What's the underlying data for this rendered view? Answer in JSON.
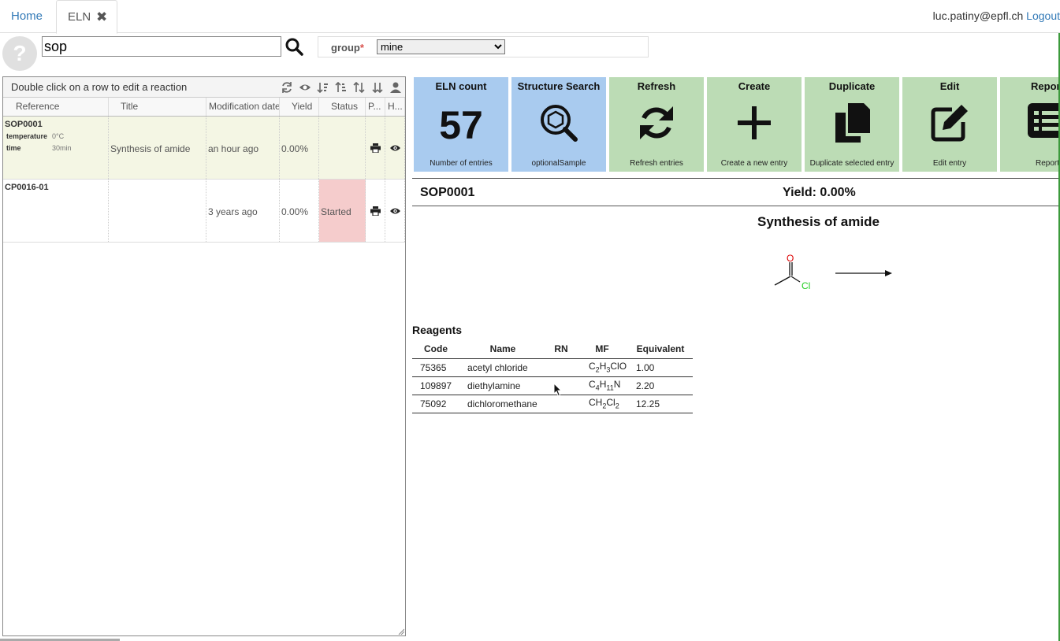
{
  "tabs": {
    "home": "Home",
    "eln": "ELN"
  },
  "user": {
    "email": "luc.patiny@epfl.ch",
    "logout": "Logout"
  },
  "search": {
    "value": "sop"
  },
  "group": {
    "label": "group",
    "required_mark": "*",
    "selected": "mine"
  },
  "list": {
    "hint": "Double click on a row to edit a reaction",
    "columns": [
      "Reference",
      "Title",
      "Modification date",
      "Yield",
      "Status",
      "P...",
      "H..."
    ],
    "rows": [
      {
        "reference": "SOP0001",
        "conditions": [
          {
            "key": "temperature",
            "value": "0°C"
          },
          {
            "key": "time",
            "value": "30min"
          }
        ],
        "title": "Synthesis of amide",
        "modified": "an hour ago",
        "yield": "0.00%",
        "status": ""
      },
      {
        "reference": "CP0016-01",
        "conditions": [],
        "title": "",
        "modified": "3 years ago",
        "yield": "0.00%",
        "status": "Started"
      }
    ]
  },
  "tiles": [
    {
      "title": "ELN count",
      "value": "57",
      "subtitle": "Number of entries",
      "color": "#a9cbef"
    },
    {
      "title": "Structure Search",
      "icon": "structure-search-icon",
      "subtitle": "optionalSample",
      "color": "#a9cbef"
    },
    {
      "title": "Refresh",
      "icon": "refresh-icon",
      "subtitle": "Refresh entries",
      "color": "#bcdcb5"
    },
    {
      "title": "Create",
      "icon": "plus-icon",
      "subtitle": "Create a new entry",
      "color": "#bcdcb5"
    },
    {
      "title": "Duplicate",
      "icon": "copy-icon",
      "subtitle": "Duplicate selected entry",
      "color": "#bcdcb5"
    },
    {
      "title": "Edit",
      "icon": "edit-icon",
      "subtitle": "Edit entry",
      "color": "#bcdcb5"
    },
    {
      "title": "Report",
      "icon": "list-icon",
      "subtitle": "Report",
      "color": "#bcdcb5"
    }
  ],
  "detail": {
    "reference": "SOP0001",
    "yield": "Yield: 0.00%",
    "title": "Synthesis of amide",
    "scheme_atoms": {
      "o": "O",
      "cl": "Cl"
    }
  },
  "reagents": {
    "title": "Reagents",
    "columns": [
      "Code",
      "Name",
      "RN",
      "MF",
      "Equivalent"
    ],
    "rows": [
      {
        "code": "75365",
        "name": "acetyl chloride",
        "rn": "",
        "mf": [
          [
            "C",
            ""
          ],
          [
            "2",
            "sub"
          ],
          [
            "H",
            ""
          ],
          [
            "3",
            "sub"
          ],
          [
            "ClO",
            ""
          ]
        ],
        "equivalent": "1.00"
      },
      {
        "code": "109897",
        "name": "diethylamine",
        "rn": "",
        "mf": [
          [
            "C",
            ""
          ],
          [
            "4",
            "sub"
          ],
          [
            "H",
            ""
          ],
          [
            "11",
            "sub"
          ],
          [
            "N",
            ""
          ]
        ],
        "equivalent": "2.20"
      },
      {
        "code": "75092",
        "name": "dichloromethane",
        "rn": "",
        "mf": [
          [
            "CH",
            ""
          ],
          [
            "2",
            "sub"
          ],
          [
            "Cl",
            ""
          ],
          [
            "2",
            "sub"
          ]
        ],
        "equivalent": "12.25"
      }
    ]
  }
}
